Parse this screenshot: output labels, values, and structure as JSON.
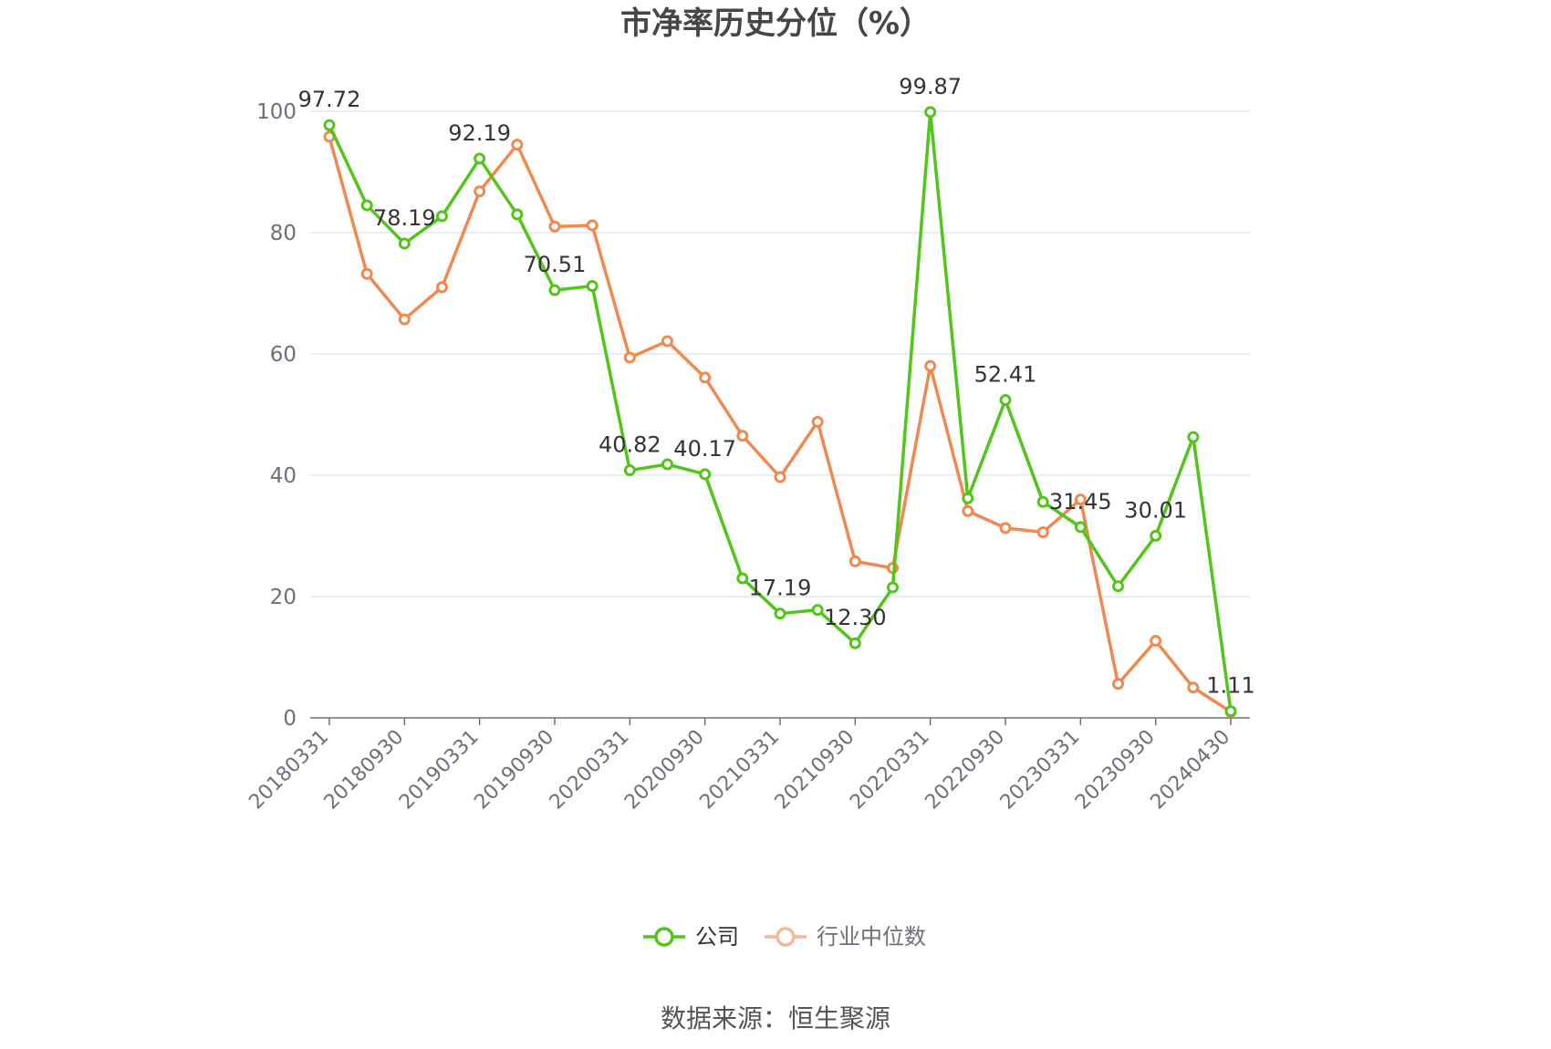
{
  "chart_data": {
    "type": "line",
    "title": "市净率历史分位（%）",
    "source": "数据来源：恒生聚源",
    "xlabel": "",
    "ylabel": "",
    "ylim": [
      0,
      100
    ],
    "yticks": [
      0,
      20,
      40,
      60,
      80,
      100
    ],
    "grid": true,
    "legend_position": "bottom",
    "x": [
      "20180331",
      "20180630",
      "20180930",
      "20181231",
      "20190331",
      "20190630",
      "20190930",
      "20191231",
      "20200331",
      "20200630",
      "20200930",
      "20201231",
      "20210331",
      "20210630",
      "20210930",
      "20211231",
      "20220331",
      "20220630",
      "20220930",
      "20221231",
      "20230331",
      "20230630",
      "20230930",
      "20231231",
      "20240430"
    ],
    "x_tick_labels": [
      "20180331",
      "20180930",
      "20190331",
      "20190930",
      "20200331",
      "20200930",
      "20210331",
      "20210930",
      "20220331",
      "20220930",
      "20230331",
      "20230930",
      "20240430"
    ],
    "series": [
      {
        "name": "公司",
        "color": "#52c41a",
        "values": [
          97.72,
          84.5,
          78.19,
          82.7,
          92.19,
          83.0,
          70.51,
          71.2,
          40.82,
          41.8,
          40.17,
          23.0,
          17.19,
          17.8,
          12.3,
          21.5,
          99.87,
          36.2,
          52.41,
          35.6,
          31.45,
          21.7,
          30.01,
          46.3,
          1.11
        ],
        "labels": {
          "0": "97.72",
          "2": "78.19",
          "4": "92.19",
          "6": "70.51",
          "8": "40.82",
          "10": "40.17",
          "12": "17.19",
          "14": "12.30",
          "16": "99.87",
          "18": "52.41",
          "20": "31.45",
          "22": "30.01",
          "24": "1.11"
        }
      },
      {
        "name": "行业中位数",
        "color": "#f0894f",
        "values": [
          95.8,
          73.2,
          65.7,
          71.0,
          86.8,
          94.5,
          81.0,
          81.2,
          59.4,
          62.1,
          56.1,
          46.5,
          39.7,
          48.8,
          25.8,
          24.7,
          58.0,
          34.1,
          31.3,
          30.6,
          36.0,
          5.6,
          12.7,
          5.0,
          1.0
        ]
      }
    ]
  }
}
